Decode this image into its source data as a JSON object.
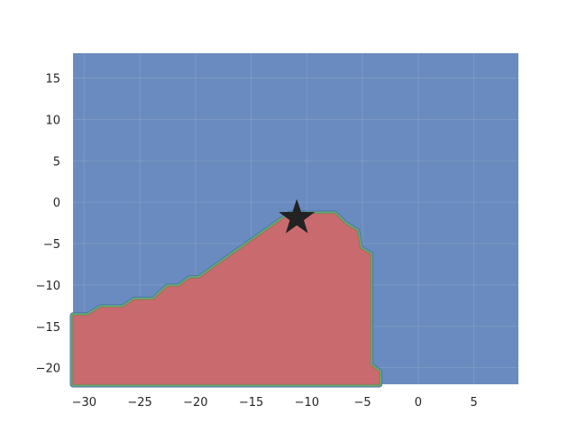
{
  "chart_data": {
    "type": "contour",
    "title": "",
    "xlabel": "",
    "ylabel": "",
    "xlim": [
      -31,
      9
    ],
    "ylim": [
      -22,
      18
    ],
    "x_ticks": [
      -30,
      -25,
      -20,
      -15,
      -10,
      -5,
      0,
      5
    ],
    "y_ticks": [
      -20,
      -15,
      -10,
      -5,
      0,
      5,
      10,
      15
    ],
    "grid": true,
    "background_color": "#6a8bbf",
    "regions": [
      {
        "color": "#c96b6e",
        "boundary": [
          [
            -31,
            -13.7
          ],
          [
            -29.7,
            -13.7
          ],
          [
            -28.5,
            -12.7
          ],
          [
            -26.5,
            -12.7
          ],
          [
            -25.5,
            -11.8
          ],
          [
            -23.8,
            -11.8
          ],
          [
            -22.5,
            -10.2
          ],
          [
            -21.5,
            -10.2
          ],
          [
            -20.5,
            -9.2
          ],
          [
            -19.7,
            -9.2
          ],
          [
            -11.5,
            -1.4
          ],
          [
            -7.5,
            -1.4
          ],
          [
            -6.5,
            -2.7
          ],
          [
            -5.5,
            -3.5
          ],
          [
            -5.2,
            -5.6
          ],
          [
            -4.3,
            -6.3
          ],
          [
            -4.3,
            -19.7
          ],
          [
            -3.5,
            -20.5
          ],
          [
            -3.5,
            -22
          ],
          [
            -31,
            -22
          ]
        ]
      }
    ],
    "contour_colors": [
      "#55a868",
      "#4c72b0"
    ],
    "marker": {
      "shape": "star",
      "x": -10.9,
      "y": -1.9,
      "color": "#222222"
    }
  }
}
